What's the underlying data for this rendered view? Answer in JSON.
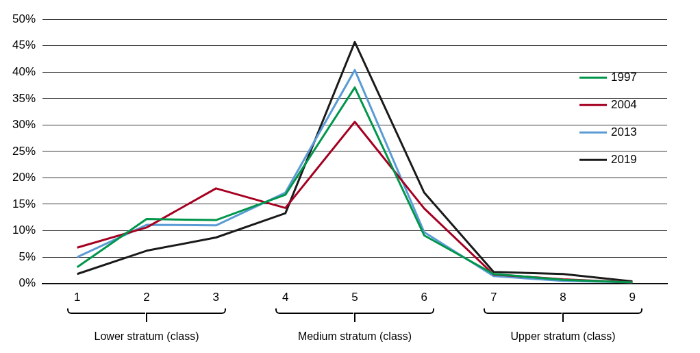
{
  "chart_data": {
    "type": "line",
    "categories": [
      "1",
      "2",
      "3",
      "4",
      "5",
      "6",
      "7",
      "8",
      "9"
    ],
    "series": [
      {
        "name": "1997",
        "color": "#00964b",
        "values": [
          3.1,
          12.2,
          12.0,
          16.8,
          37.1,
          9.1,
          1.8,
          0.7,
          0.2
        ]
      },
      {
        "name": "2004",
        "color": "#a50021",
        "values": [
          6.8,
          10.6,
          18.0,
          14.3,
          30.6,
          14.2,
          1.7,
          0.8,
          0.2
        ]
      },
      {
        "name": "2013",
        "color": "#5b9bd5",
        "values": [
          5.0,
          11.1,
          11.0,
          17.2,
          40.4,
          9.7,
          1.4,
          0.5,
          0.2
        ]
      },
      {
        "name": "2019",
        "color": "#1a1a1a",
        "values": [
          1.8,
          6.2,
          8.7,
          13.3,
          45.7,
          17.2,
          2.2,
          1.8,
          0.4
        ]
      }
    ],
    "ylim": [
      0,
      50
    ],
    "yticks": [
      {
        "value": 0,
        "label": "0%"
      },
      {
        "value": 5,
        "label": "5%"
      },
      {
        "value": 10,
        "label": "10%"
      },
      {
        "value": 15,
        "label": "15%"
      },
      {
        "value": 20,
        "label": "20%"
      },
      {
        "value": 25,
        "label": "25%"
      },
      {
        "value": 30,
        "label": "30%"
      },
      {
        "value": 35,
        "label": "35%"
      },
      {
        "value": 40,
        "label": "40%"
      },
      {
        "value": 45,
        "label": "45%"
      },
      {
        "value": 50,
        "label": "50%"
      }
    ],
    "grid": "y",
    "legend": "right",
    "marker": "none",
    "line_style": "solid",
    "annotations": [
      "Lower stratum (class)",
      "Medium stratum (class)",
      "Upper stratum (class)"
    ]
  }
}
